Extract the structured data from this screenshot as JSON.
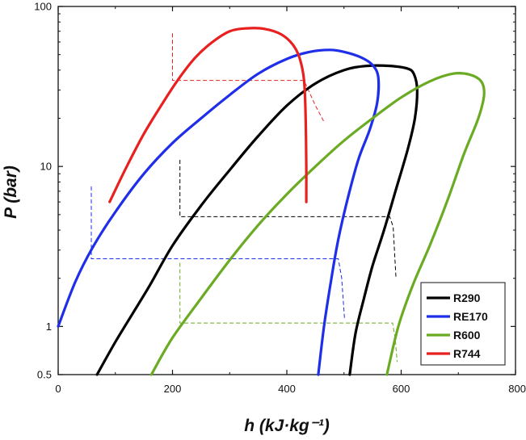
{
  "chart_data": {
    "type": "line",
    "xlabel": "h (kJ·kg⁻¹)",
    "ylabel": "P (bar)",
    "xlim": [
      0,
      800
    ],
    "ylim": [
      0.5,
      100
    ],
    "yscale": "log",
    "x_ticks": [
      0,
      200,
      400,
      600,
      800
    ],
    "x_tick_labels": [
      "0",
      "200",
      "400",
      "600",
      "800"
    ],
    "y_ticks": [
      0.5,
      1,
      10,
      100
    ],
    "y_tick_labels": [
      "0.5",
      "1",
      "10",
      "100"
    ],
    "grid": false,
    "legend_position": "bottom-right",
    "series": [
      {
        "name": "R290",
        "color": "#000000",
        "dome": [
          [
            68,
            0.5
          ],
          [
            100,
            0.8
          ],
          [
            130,
            1.2
          ],
          [
            160,
            1.8
          ],
          [
            200,
            3.2
          ],
          [
            250,
            5.7
          ],
          [
            300,
            9.5
          ],
          [
            350,
            15.5
          ],
          [
            400,
            24
          ],
          [
            450,
            33
          ],
          [
            500,
            40
          ],
          [
            540,
            42.5
          ],
          [
            580,
            42.5
          ],
          [
            610,
            41
          ],
          [
            622,
            38
          ],
          [
            628,
            30
          ],
          [
            624,
            20
          ],
          [
            612,
            13
          ],
          [
            590,
            7
          ],
          [
            570,
            4
          ],
          [
            550,
            2.4
          ],
          [
            535,
            1.5
          ],
          [
            520,
            0.9
          ],
          [
            510,
            0.5
          ]
        ],
        "cycle": [
          [
            213,
            11
          ],
          [
            213,
            4.85
          ],
          [
            580,
            4.85
          ],
          [
            586,
            4.2
          ],
          [
            591,
            2
          ]
        ]
      },
      {
        "name": "RE170",
        "color": "#1f2ee8",
        "dome": [
          [
            0,
            1
          ],
          [
            30,
            1.9
          ],
          [
            60,
            3.1
          ],
          [
            100,
            5.2
          ],
          [
            150,
            9
          ],
          [
            200,
            14
          ],
          [
            250,
            20
          ],
          [
            300,
            28
          ],
          [
            350,
            38
          ],
          [
            400,
            47
          ],
          [
            440,
            52
          ],
          [
            475,
            53.5
          ],
          [
            500,
            52
          ],
          [
            530,
            48
          ],
          [
            550,
            43
          ],
          [
            560,
            36
          ],
          [
            558,
            25
          ],
          [
            545,
            17
          ],
          [
            525,
            11
          ],
          [
            505,
            6
          ],
          [
            490,
            3.5
          ],
          [
            478,
            2
          ],
          [
            465,
            1
          ],
          [
            455,
            0.5
          ]
        ],
        "cycle": [
          [
            58,
            7.5
          ],
          [
            58,
            2.65
          ],
          [
            490,
            2.65
          ],
          [
            496,
            2
          ],
          [
            501,
            1.1
          ]
        ]
      },
      {
        "name": "R600",
        "color": "#6aab23",
        "dome": [
          [
            163,
            0.5
          ],
          [
            200,
            0.85
          ],
          [
            250,
            1.5
          ],
          [
            300,
            2.6
          ],
          [
            350,
            4.3
          ],
          [
            400,
            6.7
          ],
          [
            450,
            10
          ],
          [
            500,
            14.5
          ],
          [
            550,
            20
          ],
          [
            600,
            27
          ],
          [
            650,
            34
          ],
          [
            690,
            38
          ],
          [
            720,
            37.5
          ],
          [
            740,
            34
          ],
          [
            745,
            28
          ],
          [
            735,
            20
          ],
          [
            710,
            12
          ],
          [
            680,
            6
          ],
          [
            650,
            3.2
          ],
          [
            620,
            1.8
          ],
          [
            595,
            1
          ],
          [
            575,
            0.5
          ]
        ],
        "cycle": [
          [
            213,
            2.5
          ],
          [
            213,
            1.05
          ],
          [
            585,
            1.05
          ],
          [
            590,
            0.82
          ],
          [
            593,
            0.6
          ]
        ]
      },
      {
        "name": "R744",
        "color": "#e8201f",
        "dome": [
          [
            90,
            6
          ],
          [
            120,
            10
          ],
          [
            150,
            16
          ],
          [
            180,
            24
          ],
          [
            210,
            35
          ],
          [
            240,
            48
          ],
          [
            270,
            60
          ],
          [
            300,
            70
          ],
          [
            330,
            73
          ],
          [
            360,
            72.5
          ],
          [
            390,
            67
          ],
          [
            410,
            58
          ],
          [
            422,
            48
          ],
          [
            430,
            35
          ],
          [
            433,
            20
          ],
          [
            434,
            10
          ],
          [
            434,
            6
          ]
        ],
        "cycle": [
          [
            200,
            68
          ],
          [
            200,
            34.5
          ],
          [
            430,
            34.5
          ],
          [
            450,
            24
          ],
          [
            465,
            19
          ]
        ]
      }
    ]
  }
}
